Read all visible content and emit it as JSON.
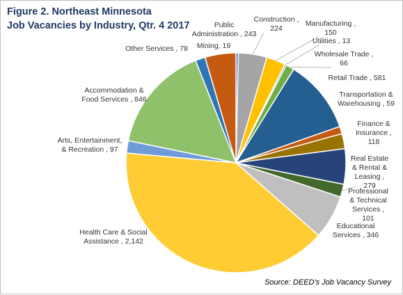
{
  "chart_data": {
    "type": "pie",
    "title_lines": [
      "Figure 2. Northeast Minnesota",
      "Job Vacancies by Industry, Qtr. 4 2017"
    ],
    "source": "Source:  DEED's Job Vacancy Survey",
    "slices": [
      {
        "name": "Mining",
        "value": 19,
        "value_text": "19",
        "color": "#4472c4"
      },
      {
        "name": "Construction",
        "value": 224,
        "value_text": "224",
        "color": "#a5a5a5"
      },
      {
        "name": "Manufacturing",
        "value": 150,
        "value_text": "150",
        "color": "#ffc000"
      },
      {
        "name": "Utilities",
        "value": 13,
        "value_text": "13",
        "color": "#5b9bd5"
      },
      {
        "name": "Wholesale Trade",
        "value": 66,
        "value_text": "66",
        "color": "#70ad47"
      },
      {
        "name": "Retail Trade",
        "value": 581,
        "value_text": "581",
        "color": "#255e91"
      },
      {
        "name": "Transportation & Warehousing",
        "value": 59,
        "value_text": "59",
        "color": "#c55a11"
      },
      {
        "name": "Finance & Insurance",
        "value": 118,
        "value_text": "118",
        "color": "#997300"
      },
      {
        "name": "Real Estate & Rental & Leasing",
        "value": 279,
        "value_text": "279",
        "color": "#264478"
      },
      {
        "name": "Professional & Technical Services",
        "value": 101,
        "value_text": "101",
        "color": "#43682b"
      },
      {
        "name": "Educational Services",
        "value": 346,
        "value_text": "346",
        "color": "#bfbfbf"
      },
      {
        "name": "Health Care & Social Assistance",
        "value": 2142,
        "value_text": "2,142",
        "color": "#ffcd33"
      },
      {
        "name": "Arts, Entertainment, & Recreation",
        "value": 97,
        "value_text": "97",
        "color": "#6f9bd9"
      },
      {
        "name": "Accommodation & Food Services",
        "value": 846,
        "value_text": "846",
        "color": "#8fc16b"
      },
      {
        "name": "Other Services",
        "value": 78,
        "value_text": "78",
        "color": "#2e75b6"
      },
      {
        "name": "Public Administration",
        "value": 243,
        "value_text": "243",
        "color": "#c55a11"
      }
    ],
    "start_angle_deg": -90,
    "direction": "clockwise"
  }
}
